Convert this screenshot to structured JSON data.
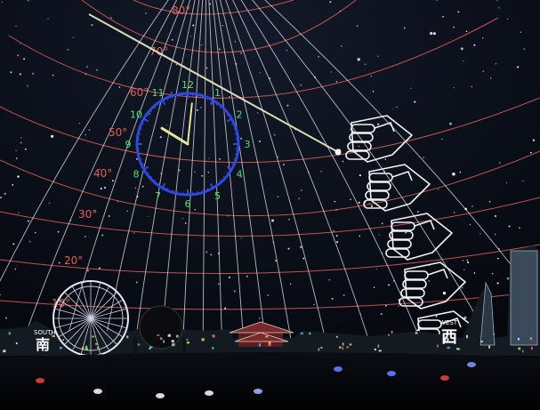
{
  "scene": {
    "description_free": true
  },
  "altitude_labels": [
    "80°",
    "70°",
    "60°",
    "50°",
    "40°",
    "30°",
    "20°",
    "10°"
  ],
  "clock": {
    "numbers": [
      "12",
      "1",
      "2",
      "3",
      "4",
      "5",
      "6",
      "7",
      "8",
      "9",
      "10",
      "11"
    ],
    "hour_value": 10.05,
    "minute_value": 1
  },
  "direction_signs": {
    "south_latin": "SOUTH",
    "south_kanji": "南",
    "west_latin": "WEST",
    "west_kanji": "西"
  },
  "hand_count": 5,
  "colors": {
    "grid": "#e0605a",
    "clock_ring": "#2f49e0",
    "clock_numbers": "#4fe07a",
    "clock_hands": "#e6e69a",
    "meteor": "#f0f0c8",
    "hands_outline": "#f2f2f2"
  }
}
